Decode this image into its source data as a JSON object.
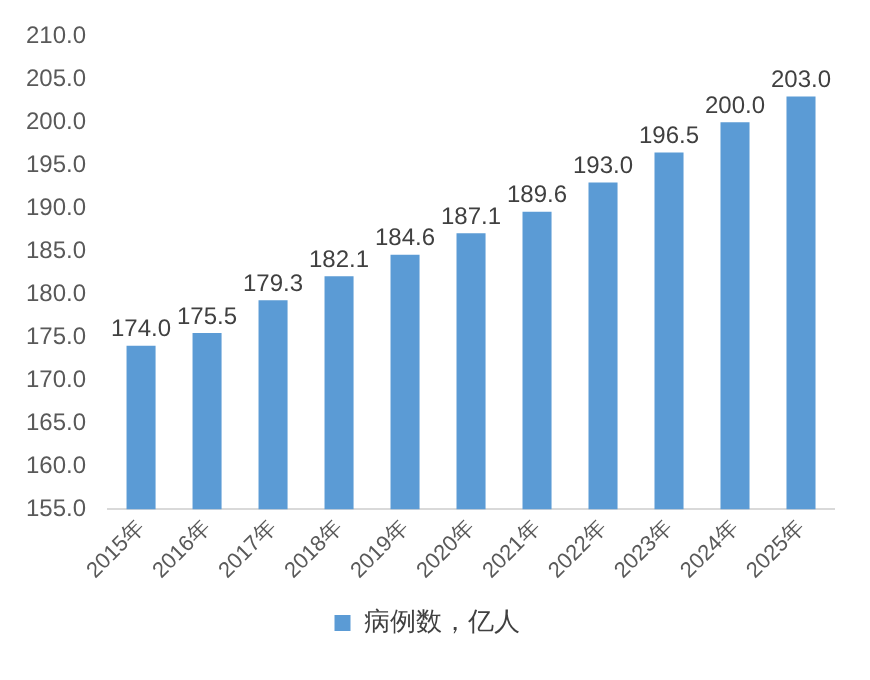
{
  "chart_data": {
    "type": "bar",
    "categories": [
      "2015年",
      "2016年",
      "2017年",
      "2018年",
      "2019年",
      "2020年",
      "2021年",
      "2022年",
      "2023年",
      "2024年",
      "2025年"
    ],
    "series": [
      {
        "name": "病例数，亿人",
        "color": "#5b9bd5",
        "values": [
          174.0,
          175.5,
          179.3,
          182.1,
          184.6,
          187.1,
          189.6,
          193.0,
          196.5,
          200.0,
          203.0
        ],
        "value_labels": [
          "174.0",
          "175.5",
          "179.3",
          "182.1",
          "184.6",
          "187.1",
          "189.6",
          "193.0",
          "196.5",
          "200.0",
          "203.0"
        ]
      }
    ],
    "ylim": [
      155,
      210
    ],
    "yticks": [
      {
        "value": 155,
        "label": "155.0"
      },
      {
        "value": 160,
        "label": "160.0"
      },
      {
        "value": 165,
        "label": "165.0"
      },
      {
        "value": 170,
        "label": "170.0"
      },
      {
        "value": 175,
        "label": "175.0"
      },
      {
        "value": 180,
        "label": "180.0"
      },
      {
        "value": 185,
        "label": "185.0"
      },
      {
        "value": 190,
        "label": "190.0"
      },
      {
        "value": 195,
        "label": "195.0"
      },
      {
        "value": 200,
        "label": "200.0"
      },
      {
        "value": 205,
        "label": "205.0"
      },
      {
        "value": 210,
        "label": "210.0"
      }
    ],
    "grid": false,
    "legend": "bottom"
  }
}
